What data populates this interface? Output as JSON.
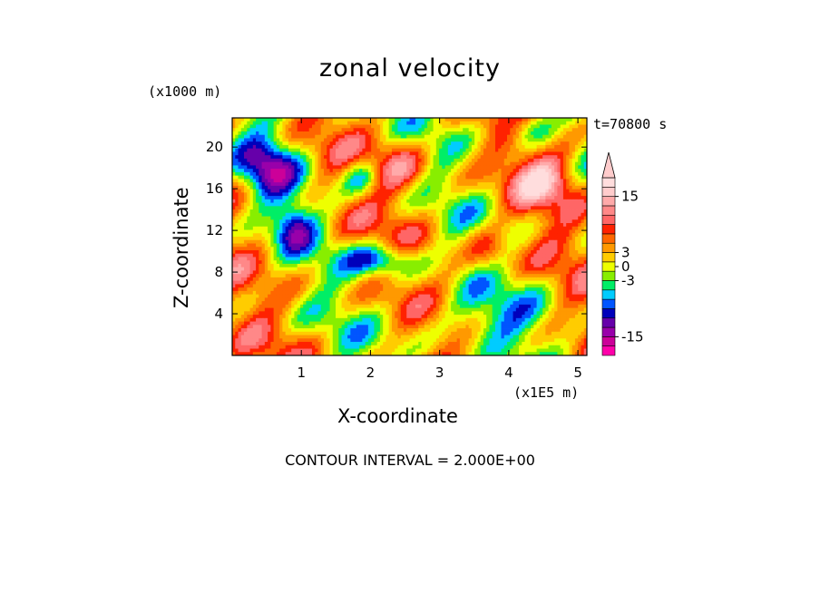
{
  "chart_data": {
    "type": "heatmap",
    "title": "zonal velocity",
    "xlabel": "X-coordinate",
    "ylabel": "Z-coordinate",
    "x_unit": "(x1E5 m)",
    "y_unit": "(x1000 m)",
    "time_label": "t=70800 s",
    "footer": "CONTOUR INTERVAL = 2.000E+00",
    "xlim": [
      0,
      5.13
    ],
    "ylim": [
      0,
      22.8
    ],
    "x_ticks": [
      "1",
      "2",
      "3",
      "4",
      "5"
    ],
    "y_ticks": [
      "4",
      "8",
      "12",
      "16",
      "20"
    ],
    "colorbar": {
      "levels": [
        -19,
        -17,
        -15,
        -13,
        -11,
        -9,
        -7,
        -5,
        -3,
        -1,
        1,
        3,
        5,
        7,
        9,
        11,
        13,
        15,
        17,
        19
      ],
      "colors": [
        "#ff00aa",
        "#cc0099",
        "#9900aa",
        "#6600aa",
        "#0000bb",
        "#0055ff",
        "#00ccff",
        "#00ee66",
        "#88ee00",
        "#eeff00",
        "#ffcc00",
        "#ff9900",
        "#ff6600",
        "#ff2200",
        "#ff6666",
        "#ff8888",
        "#ffaaaa",
        "#ffcccc",
        "#ffdddd"
      ],
      "labels": [
        "15",
        "3",
        "0",
        "-3",
        "-15"
      ]
    }
  }
}
